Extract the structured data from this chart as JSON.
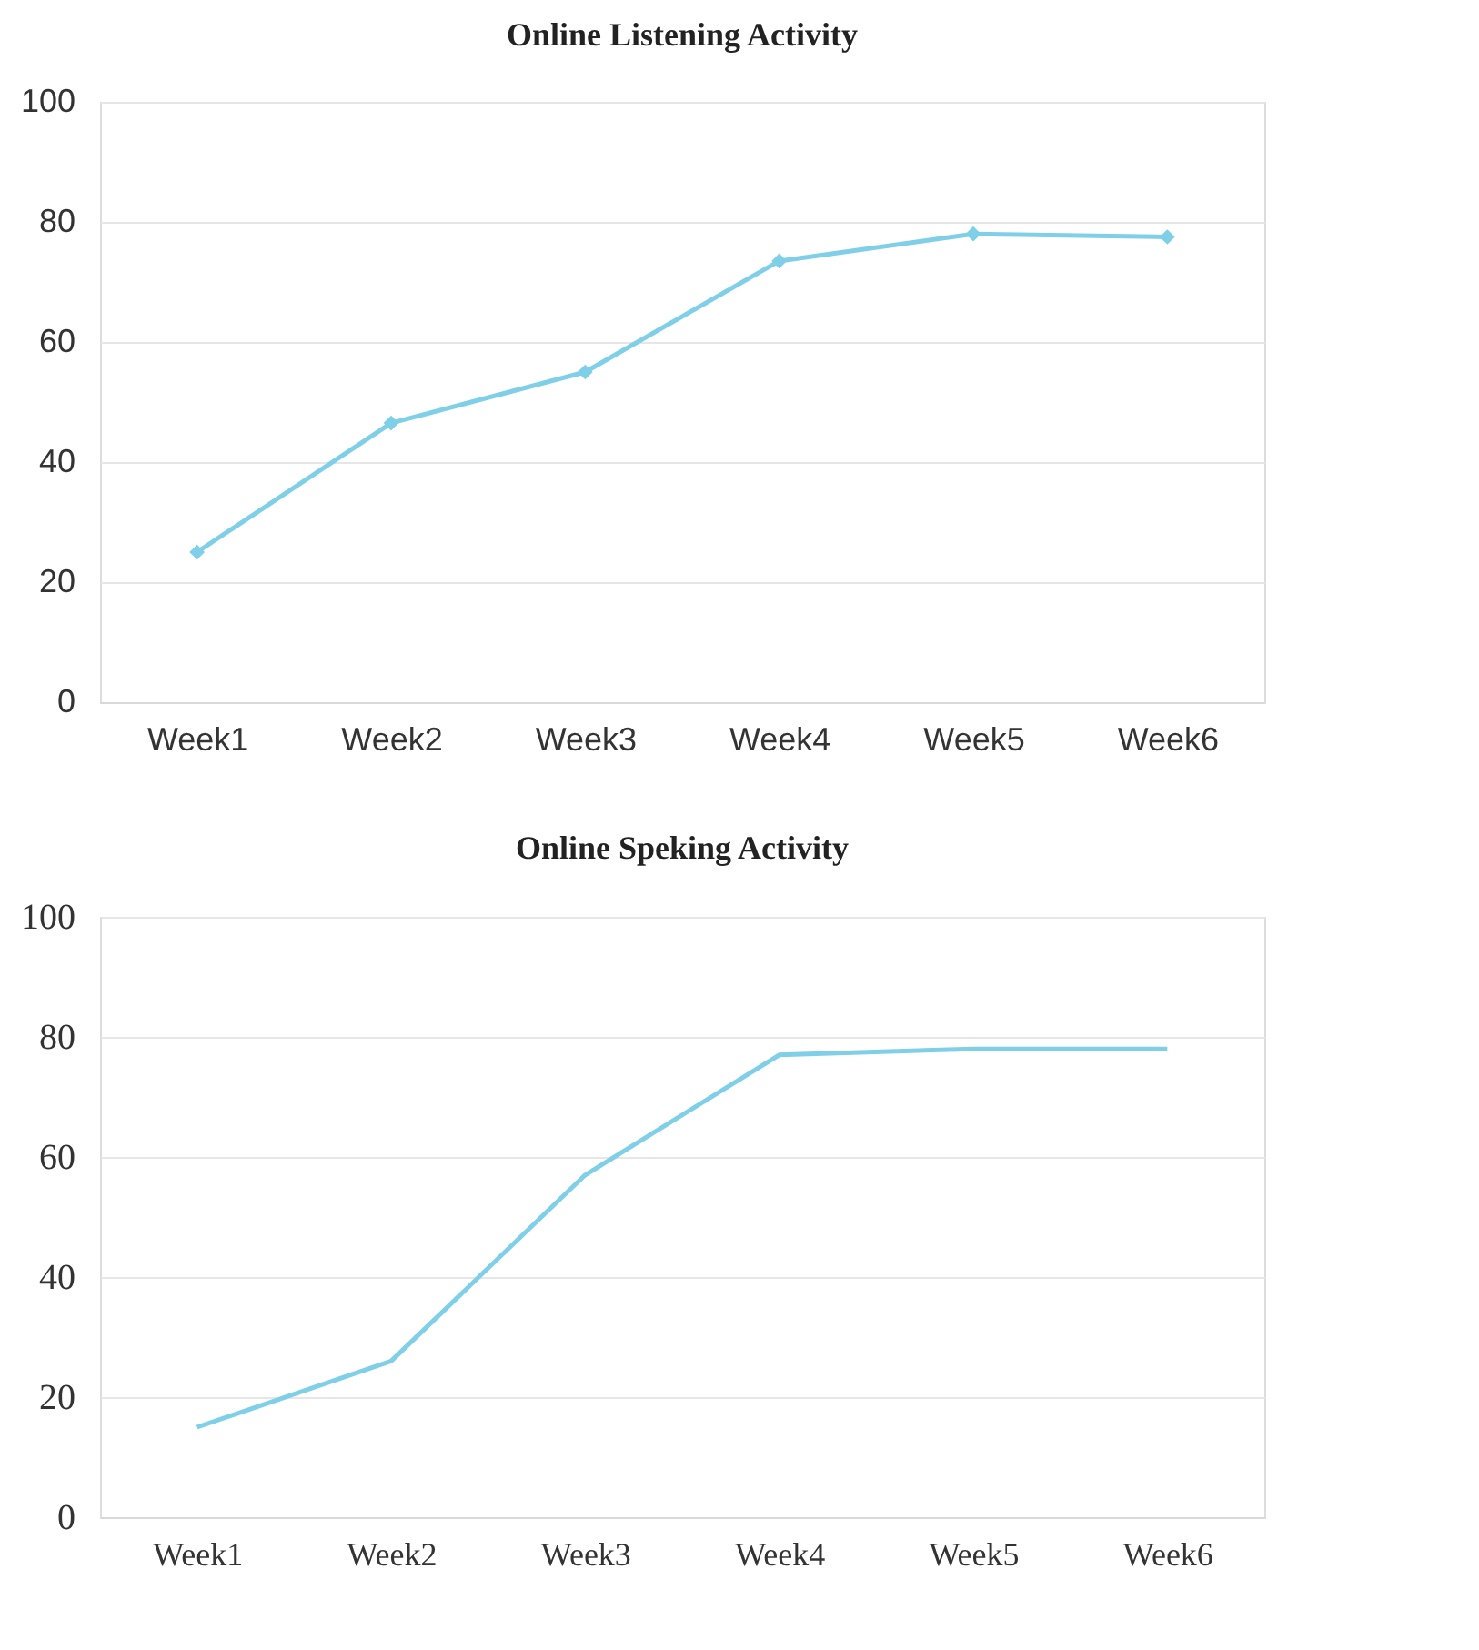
{
  "chart_data": [
    {
      "type": "line",
      "title": "Online Listening Activity",
      "categories": [
        "Week1",
        "Week2",
        "Week3",
        "Week4",
        "Week5",
        "Week6"
      ],
      "series": [
        {
          "color": "#7fcfe8",
          "values": [
            25,
            46.5,
            55,
            73.5,
            78,
            77.5
          ]
        }
      ],
      "ylim": [
        0,
        100
      ],
      "yticks": [
        0,
        20,
        40,
        60,
        80,
        100
      ],
      "grid": "y",
      "marker": "diamond",
      "line_style": "solid"
    },
    {
      "type": "line",
      "title": "Online Speking Activity",
      "categories": [
        "Week1",
        "Week2",
        "Week3",
        "Week4",
        "Week5",
        "Week6"
      ],
      "series": [
        {
          "color": "#7fcfe8",
          "values": [
            15,
            26,
            57,
            77,
            78,
            78
          ]
        }
      ],
      "ylim": [
        0,
        100
      ],
      "yticks": [
        0,
        20,
        40,
        60,
        80,
        100
      ],
      "grid": "y",
      "marker": "none",
      "line_style": "solid"
    }
  ]
}
